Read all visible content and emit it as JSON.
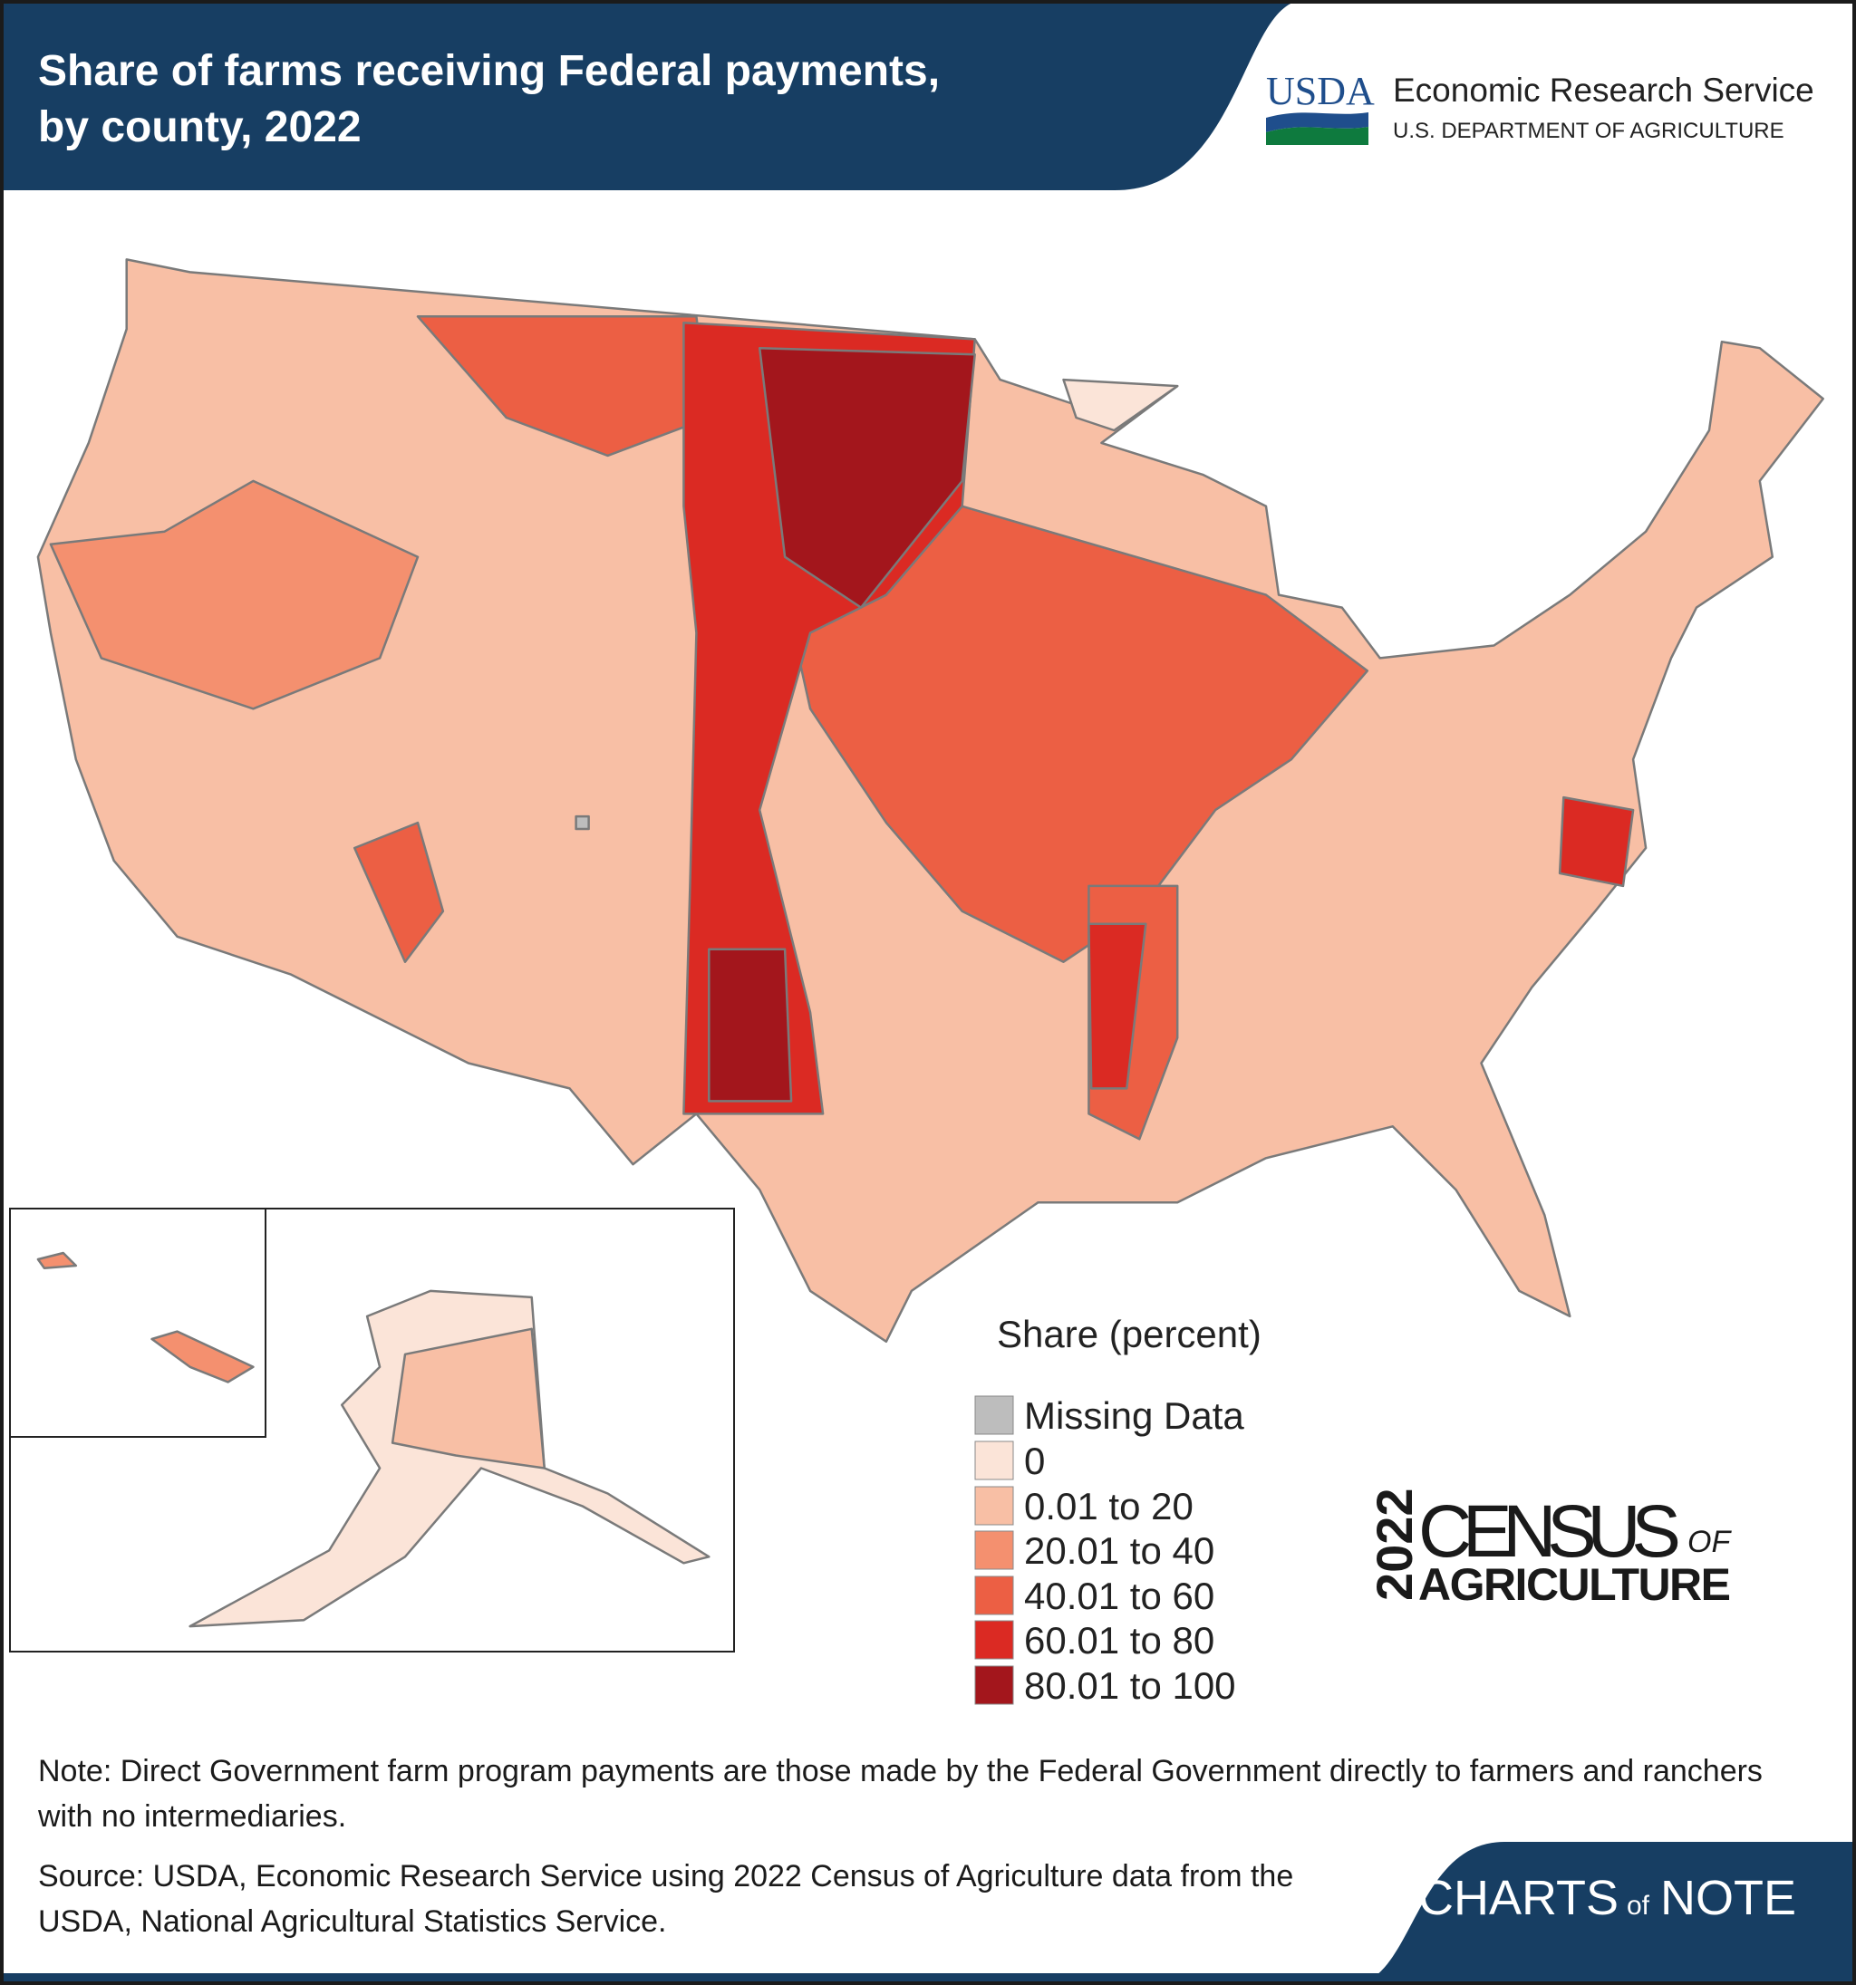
{
  "header": {
    "title_lines": [
      "Share of farms receiving Federal payments,",
      "by county, 2022"
    ]
  },
  "logo": {
    "mark": "USDA",
    "name": "Economic Research Service",
    "department": "U.S. DEPARTMENT OF AGRICULTURE"
  },
  "legend": {
    "title": "Share (percent)",
    "items": [
      {
        "label": "Missing Data",
        "color": "#bdbdbd"
      },
      {
        "label": "0",
        "color": "#fbe4d8"
      },
      {
        "label": "0.01 to 20",
        "color": "#f8bfa5"
      },
      {
        "label": "20.01 to 40",
        "color": "#f4906f"
      },
      {
        "label": "40.01 to 60",
        "color": "#ec5f44"
      },
      {
        "label": "60.01 to 80",
        "color": "#db2a23"
      },
      {
        "label": "80.01 to 100",
        "color": "#a3161c"
      }
    ]
  },
  "census_logo": {
    "year": "2022",
    "line1": "CENSUS",
    "of": "OF",
    "line2": "AGRICULTURE"
  },
  "note": "Note: Direct Government farm program payments are those made by the Federal Government directly to farmers and ranchers with no intermediaries.",
  "source": "Source: USDA, Economic Research Service using 2022 Census of Agriculture data from the USDA, National Agricultural Statistics Service.",
  "brand": {
    "charts": "CHARTS",
    "of": "of",
    "note": "NOTE"
  }
}
